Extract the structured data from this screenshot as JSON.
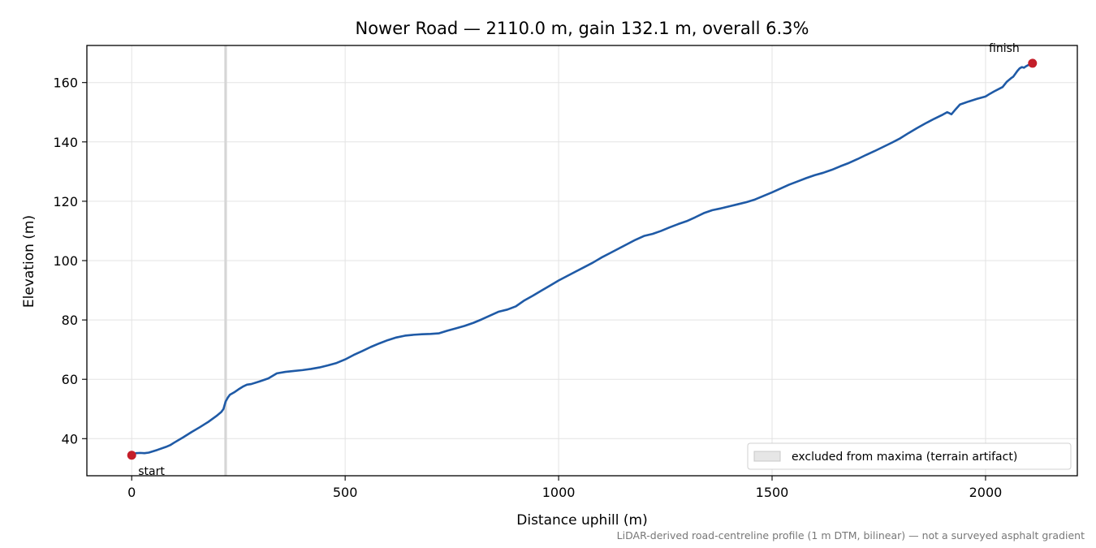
{
  "chart_data": {
    "type": "line",
    "title": "Nower Road — 2110.0 m, gain 132.1 m, overall 6.3%",
    "xlabel": "Distance uphill (m)",
    "ylabel": "Elevation (m)",
    "xlim": [
      -105,
      2215
    ],
    "ylim": [
      27.5,
      172.5
    ],
    "xticks": [
      0,
      500,
      1000,
      1500,
      2000
    ],
    "yticks": [
      40,
      60,
      80,
      100,
      120,
      140,
      160
    ],
    "grid": true,
    "legend_position": "lower-right",
    "series": [
      {
        "color": "#1f5aa6",
        "points": [
          [
            0,
            34.4
          ],
          [
            5,
            34.8
          ],
          [
            10,
            35.1
          ],
          [
            20,
            35.2
          ],
          [
            30,
            35.1
          ],
          [
            40,
            35.3
          ],
          [
            60,
            36.2
          ],
          [
            80,
            37.2
          ],
          [
            90,
            37.8
          ],
          [
            100,
            38.7
          ],
          [
            120,
            40.4
          ],
          [
            140,
            42.2
          ],
          [
            160,
            43.9
          ],
          [
            180,
            45.7
          ],
          [
            200,
            47.8
          ],
          [
            210,
            49.0
          ],
          [
            215,
            50.0
          ],
          [
            220,
            52.5
          ],
          [
            225,
            53.8
          ],
          [
            230,
            54.8
          ],
          [
            240,
            55.6
          ],
          [
            250,
            56.6
          ],
          [
            260,
            57.5
          ],
          [
            270,
            58.2
          ],
          [
            280,
            58.4
          ],
          [
            300,
            59.3
          ],
          [
            320,
            60.3
          ],
          [
            340,
            62.0
          ],
          [
            360,
            62.5
          ],
          [
            380,
            62.8
          ],
          [
            400,
            63.1
          ],
          [
            420,
            63.5
          ],
          [
            440,
            64.0
          ],
          [
            460,
            64.7
          ],
          [
            480,
            65.5
          ],
          [
            500,
            66.7
          ],
          [
            520,
            68.2
          ],
          [
            540,
            69.5
          ],
          [
            560,
            70.9
          ],
          [
            580,
            72.1
          ],
          [
            600,
            73.2
          ],
          [
            620,
            74.1
          ],
          [
            640,
            74.7
          ],
          [
            660,
            75.0
          ],
          [
            680,
            75.2
          ],
          [
            700,
            75.3
          ],
          [
            720,
            75.5
          ],
          [
            740,
            76.4
          ],
          [
            760,
            77.2
          ],
          [
            780,
            78.0
          ],
          [
            800,
            79.0
          ],
          [
            820,
            80.2
          ],
          [
            840,
            81.5
          ],
          [
            860,
            82.8
          ],
          [
            880,
            83.5
          ],
          [
            900,
            84.6
          ],
          [
            920,
            86.6
          ],
          [
            940,
            88.2
          ],
          [
            960,
            89.9
          ],
          [
            980,
            91.6
          ],
          [
            1000,
            93.3
          ],
          [
            1020,
            94.8
          ],
          [
            1040,
            96.3
          ],
          [
            1060,
            97.8
          ],
          [
            1080,
            99.3
          ],
          [
            1100,
            101.0
          ],
          [
            1120,
            102.5
          ],
          [
            1140,
            104.0
          ],
          [
            1160,
            105.5
          ],
          [
            1180,
            107.0
          ],
          [
            1200,
            108.3
          ],
          [
            1220,
            109.0
          ],
          [
            1240,
            110.0
          ],
          [
            1260,
            111.2
          ],
          [
            1280,
            112.3
          ],
          [
            1300,
            113.3
          ],
          [
            1320,
            114.6
          ],
          [
            1340,
            116.0
          ],
          [
            1360,
            117.0
          ],
          [
            1380,
            117.6
          ],
          [
            1400,
            118.3
          ],
          [
            1420,
            119.0
          ],
          [
            1440,
            119.7
          ],
          [
            1460,
            120.6
          ],
          [
            1480,
            121.8
          ],
          [
            1500,
            123.0
          ],
          [
            1520,
            124.3
          ],
          [
            1540,
            125.6
          ],
          [
            1560,
            126.7
          ],
          [
            1580,
            127.8
          ],
          [
            1600,
            128.8
          ],
          [
            1620,
            129.6
          ],
          [
            1640,
            130.6
          ],
          [
            1660,
            131.8
          ],
          [
            1680,
            132.9
          ],
          [
            1700,
            134.2
          ],
          [
            1720,
            135.6
          ],
          [
            1740,
            136.9
          ],
          [
            1760,
            138.3
          ],
          [
            1780,
            139.7
          ],
          [
            1800,
            141.2
          ],
          [
            1820,
            143.0
          ],
          [
            1840,
            144.7
          ],
          [
            1860,
            146.3
          ],
          [
            1880,
            147.8
          ],
          [
            1900,
            149.2
          ],
          [
            1910,
            150.0
          ],
          [
            1915,
            149.7
          ],
          [
            1920,
            149.3
          ],
          [
            1930,
            151.0
          ],
          [
            1940,
            152.6
          ],
          [
            1960,
            153.6
          ],
          [
            1980,
            154.5
          ],
          [
            2000,
            155.3
          ],
          [
            2010,
            156.2
          ],
          [
            2020,
            157.0
          ],
          [
            2040,
            158.5
          ],
          [
            2050,
            160.3
          ],
          [
            2060,
            161.5
          ],
          [
            2065,
            162.0
          ],
          [
            2070,
            163.0
          ],
          [
            2075,
            164.0
          ],
          [
            2080,
            164.8
          ],
          [
            2085,
            165.2
          ],
          [
            2090,
            165.0
          ],
          [
            2095,
            165.5
          ],
          [
            2100,
            165.9
          ],
          [
            2105,
            166.0
          ],
          [
            2110,
            166.5
          ]
        ]
      }
    ],
    "excluded_band": {
      "x0": 217,
      "x1": 223
    },
    "markers": [
      {
        "x": 0,
        "y": 34.4,
        "label": "start",
        "color": "#c41e2a"
      },
      {
        "x": 2110,
        "y": 166.5,
        "label": "finish",
        "color": "#c41e2a"
      }
    ],
    "legend": [
      {
        "label": "excluded from maxima (terrain artifact)",
        "color": "#e6e6e6"
      }
    ],
    "footnote": "LiDAR-derived road-centreline profile (1 m DTM, bilinear) — not a surveyed asphalt gradient"
  }
}
